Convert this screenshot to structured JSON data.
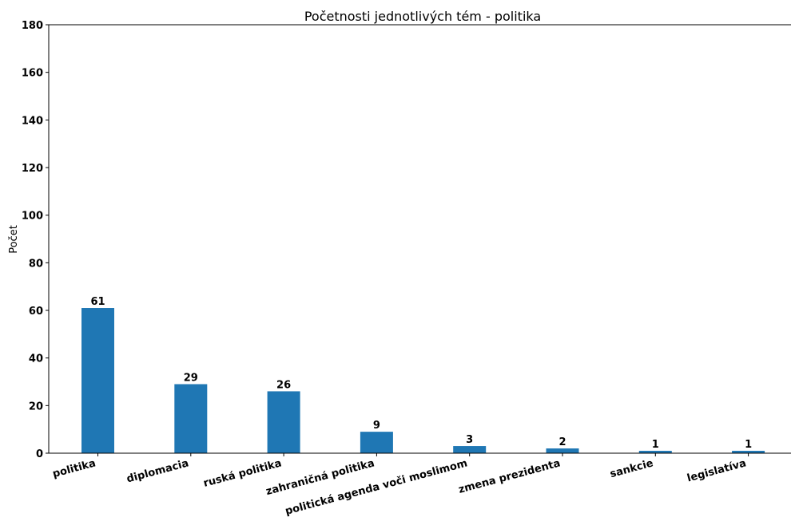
{
  "chart_data": {
    "type": "bar",
    "title": "Početnosti jednotlivých tém - politika",
    "xlabel": "",
    "ylabel": "Počet",
    "categories": [
      "politika",
      "diplomacia",
      "ruská politika",
      "zahraničná politika",
      "politická agenda voči moslimom",
      "zmena prezidenta",
      "sankcie",
      "legislatíva"
    ],
    "values": [
      61,
      29,
      26,
      9,
      3,
      2,
      1,
      1
    ],
    "ylim": [
      0,
      180
    ],
    "yticks": [
      0,
      20,
      40,
      60,
      80,
      100,
      120,
      140,
      160,
      180
    ],
    "bar_color": "#1f77b4",
    "grid": false,
    "legend": "none"
  }
}
